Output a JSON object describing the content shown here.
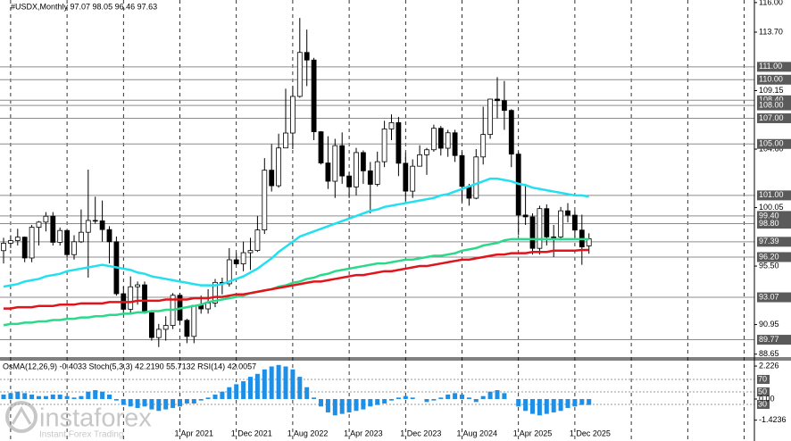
{
  "chart_data": [
    {
      "type": "candlestick",
      "title": "#USDX,Monthly  97.07 98.05 96.46 97.63",
      "open": [
        96.7,
        97.28,
        97.48,
        97.75,
        96.13,
        98.52,
        98.92,
        99.38,
        97.35,
        98.27,
        96.39,
        97.39,
        98.13,
        99.05,
        99.02,
        98.34,
        97.39,
        93.35,
        92.14,
        93.89,
        94.04,
        91.87,
        89.94,
        90.58,
        90.88,
        93.23,
        91.28,
        90.03,
        92.44,
        92.17,
        92.63,
        94.23,
        94.12,
        95.99,
        95.67,
        96.54,
        96.71,
        98.31,
        102.96,
        101.75,
        104.69,
        105.85,
        108.7,
        112.12,
        111.53,
        105.95,
        103.52,
        102.1,
        104.87,
        102.51,
        101.66,
        104.33,
        102.91,
        101.86,
        103.62,
        106.17,
        106.66,
        103.5,
        101.33,
        103.27,
        104.16,
        104.55,
        106.22,
        104.67,
        105.87,
        104.1,
        101.7,
        100.78,
        103.99,
        105.74,
        108.49,
        108.37,
        107.61,
        104.21,
        99.47,
        99.33,
        96.88,
        99.97,
        97.77,
        97.77,
        99.8,
        99.46,
        98.3,
        97.07
      ],
      "high": [
        97.7,
        97.9,
        98.4,
        97.8,
        98.7,
        99.0,
        99.7,
        99.7,
        98.5,
        98.3,
        97.9,
        99.9,
        103.0,
        100.9,
        100.6,
        98.6,
        97.8,
        93.9,
        94.7,
        94.3,
        94.3,
        91.9,
        91.0,
        91.6,
        93.4,
        93.4,
        91.4,
        92.4,
        93.2,
        93.7,
        94.5,
        94.6,
        96.9,
        96.5,
        97.4,
        97.7,
        99.4,
        103.9,
        105.0,
        105.8,
        109.3,
        109.5,
        114.8,
        113.9,
        111.7,
        106.0,
        105.6,
        105.4,
        105.9,
        102.8,
        104.7,
        104.5,
        103.6,
        104.4,
        106.8,
        107.3,
        107.1,
        104.3,
        103.8,
        104.9,
        104.7,
        106.5,
        106.4,
        106.1,
        106.1,
        104.4,
        101.9,
        104.6,
        107.9,
        108.5,
        110.2,
        109.9,
        107.7,
        104.4,
        101.9,
        99.6,
        100.2,
        100.3,
        98.7,
        100.1,
        100.4,
        99.8,
        99.5,
        98.05
      ],
      "low": [
        95.7,
        96.9,
        97.1,
        95.8,
        95.8,
        97.1,
        98.2,
        97.1,
        97.1,
        96.2,
        96.0,
        97.3,
        94.6,
        98.8,
        97.4,
        95.7,
        93.2,
        91.7,
        91.8,
        92.5,
        91.8,
        89.7,
        89.2,
        89.7,
        90.6,
        90.9,
        89.5,
        89.5,
        91.8,
        91.8,
        92.3,
        93.3,
        93.9,
        95.6,
        95.1,
        95.2,
        96.6,
        98.0,
        101.3,
        101.6,
        104.7,
        104.6,
        108.6,
        109.5,
        105.3,
        103.4,
        101.5,
        100.8,
        101.9,
        100.8,
        101.0,
        101.9,
        99.6,
        101.7,
        103.2,
        105.3,
        102.5,
        100.6,
        100.8,
        103.4,
        102.6,
        104.4,
        104.1,
        104.0,
        103.6,
        100.5,
        100.2,
        100.7,
        103.4,
        105.4,
        107.0,
        106.1,
        103.2,
        97.9,
        98.7,
        96.4,
        96.4,
        97.1,
        96.2,
        97.5,
        98.9,
        97.7,
        95.6,
        96.46
      ],
      "close": [
        97.28,
        97.48,
        97.75,
        96.13,
        98.52,
        98.92,
        99.38,
        97.35,
        98.27,
        96.39,
        97.39,
        98.13,
        99.05,
        99.02,
        98.34,
        97.39,
        93.35,
        92.14,
        93.89,
        94.04,
        91.87,
        89.94,
        90.58,
        90.88,
        93.23,
        91.28,
        90.03,
        92.44,
        92.17,
        92.63,
        94.23,
        94.12,
        95.99,
        95.67,
        96.54,
        96.71,
        98.31,
        102.96,
        101.75,
        104.69,
        105.85,
        108.7,
        112.12,
        111.53,
        105.95,
        103.52,
        102.1,
        104.87,
        102.51,
        101.66,
        104.33,
        102.91,
        101.86,
        103.62,
        106.17,
        106.66,
        103.5,
        101.33,
        103.27,
        104.16,
        104.55,
        106.22,
        104.67,
        105.87,
        104.1,
        101.7,
        100.78,
        103.99,
        105.74,
        108.49,
        108.37,
        107.61,
        104.21,
        99.47,
        99.33,
        96.88,
        99.97,
        97.77,
        97.77,
        99.8,
        99.46,
        98.3,
        96.99,
        97.63
      ],
      "lines": [
        {
          "color": "#22e0f0",
          "values": [
            93.9,
            94.0,
            94.1,
            94.3,
            94.4,
            94.5,
            94.7,
            94.8,
            94.9,
            95.1,
            95.2,
            95.3,
            95.4,
            95.5,
            95.6,
            95.5,
            95.4,
            95.3,
            95.2,
            95.0,
            94.9,
            94.7,
            94.6,
            94.5,
            94.4,
            94.3,
            94.2,
            94.1,
            94.0,
            94.0,
            94.0,
            94.1,
            94.3,
            94.5,
            94.7,
            95.0,
            95.3,
            95.7,
            96.1,
            96.6,
            97.0,
            97.4,
            97.8,
            98.0,
            98.2,
            98.4,
            98.6,
            98.8,
            99.0,
            99.2,
            99.4,
            99.6,
            99.8,
            99.9,
            100.1,
            100.2,
            100.3,
            100.4,
            100.5,
            100.6,
            100.7,
            100.8,
            101.0,
            101.1,
            101.3,
            101.5,
            101.7,
            101.9,
            102.1,
            102.3,
            102.3,
            102.2,
            102.1,
            101.9,
            101.8,
            101.6,
            101.5,
            101.4,
            101.3,
            101.2,
            101.1,
            101.0,
            101.0,
            100.9
          ]
        },
        {
          "color": "#2bd98a",
          "values": [
            90.9,
            91.0,
            91.0,
            91.1,
            91.1,
            91.2,
            91.2,
            91.3,
            91.3,
            91.4,
            91.4,
            91.5,
            91.5,
            91.6,
            91.6,
            91.7,
            91.7,
            91.8,
            91.8,
            91.9,
            91.9,
            92.0,
            92.0,
            92.1,
            92.1,
            92.2,
            92.3,
            92.4,
            92.5,
            92.7,
            92.8,
            92.9,
            93.0,
            93.1,
            93.2,
            93.4,
            93.5,
            93.6,
            93.7,
            93.9,
            94.0,
            94.2,
            94.3,
            94.5,
            94.6,
            94.8,
            94.9,
            95.1,
            95.2,
            95.3,
            95.4,
            95.5,
            95.6,
            95.7,
            95.7,
            95.8,
            95.9,
            96.0,
            96.0,
            96.1,
            96.2,
            96.3,
            96.3,
            96.4,
            96.5,
            96.7,
            96.8,
            96.9,
            97.1,
            97.2,
            97.3,
            97.5,
            97.6,
            97.6,
            97.6,
            97.6,
            97.6,
            97.6,
            97.6,
            97.6,
            97.6,
            97.6,
            97.6,
            97.6
          ]
        },
        {
          "color": "#e0141a",
          "values": [
            92.2,
            92.2,
            92.3,
            92.3,
            92.3,
            92.4,
            92.4,
            92.4,
            92.5,
            92.5,
            92.5,
            92.6,
            92.6,
            92.6,
            92.6,
            92.7,
            92.7,
            92.7,
            92.7,
            92.8,
            92.8,
            92.8,
            92.8,
            92.9,
            92.9,
            92.9,
            92.9,
            93.0,
            93.0,
            93.0,
            93.1,
            93.1,
            93.2,
            93.3,
            93.3,
            93.4,
            93.5,
            93.6,
            93.7,
            93.8,
            93.9,
            94.0,
            94.1,
            94.2,
            94.3,
            94.3,
            94.4,
            94.5,
            94.6,
            94.7,
            94.8,
            94.8,
            94.9,
            95.0,
            95.1,
            95.1,
            95.2,
            95.3,
            95.4,
            95.5,
            95.5,
            95.6,
            95.7,
            95.8,
            95.9,
            96.0,
            96.0,
            96.1,
            96.2,
            96.3,
            96.4,
            96.4,
            96.5,
            96.5,
            96.5,
            96.6,
            96.6,
            96.6,
            96.7,
            96.7,
            96.7,
            96.7,
            96.75,
            96.75
          ]
        }
      ],
      "x_labels": [
        "1 Apr 2021",
        "1 Dec 2021",
        "1 Aug 2022",
        "1 Apr 2023",
        "1 Dec 2023",
        "1 Aug 2024",
        "1 Apr 2025",
        "1 Dec 2025"
      ],
      "ylim": [
        88.42,
        116.2
      ],
      "yticks": [
        {
          "value": 116,
          "label": "116.00"
        },
        {
          "value": 113.7,
          "label": "113.70"
        },
        {
          "value": 109.15,
          "label": "109.15"
        },
        {
          "value": 104.6,
          "label": "104.60"
        },
        {
          "value": 100.05,
          "label": "100.05"
        },
        {
          "value": 95.5,
          "label": "95.50"
        },
        {
          "value": 90.95,
          "label": "90.95"
        },
        {
          "value": 88.65,
          "label": "88.65"
        }
      ],
      "levels": [
        {
          "value": 111,
          "label": "111.00"
        },
        {
          "value": 110,
          "label": "110.00"
        },
        {
          "value": 108.4,
          "label": "108.40"
        },
        {
          "value": 108,
          "label": "108.00"
        },
        {
          "value": 107,
          "label": "107.00"
        },
        {
          "value": 105,
          "label": "105.00"
        },
        {
          "value": 101,
          "label": "101.00"
        },
        {
          "value": 99.4,
          "label": "99.40"
        },
        {
          "value": 98.8,
          "label": "98.80"
        },
        {
          "value": 97.39,
          "label": "97.39"
        },
        {
          "value": 96.2,
          "label": "96.20"
        },
        {
          "value": 93.07,
          "label": "93.07"
        },
        {
          "value": 89.77,
          "label": "89.77"
        }
      ],
      "level_color": "#8c8c8c"
    },
    {
      "type": "bar",
      "title": "OsMA(12,26,9) -0.4033 Stoch(5,3,3) 42.2190 55.7132 RSI(14) 42.0057",
      "color": "#1e8fe6",
      "values": [
        0.3,
        0.4,
        0.5,
        0.4,
        0.3,
        0.2,
        0.2,
        0.3,
        0.3,
        0.2,
        0.1,
        0.2,
        0.5,
        0.6,
        0.5,
        0.3,
        -0.1,
        -0.4,
        -0.5,
        -0.6,
        -0.5,
        -0.7,
        -0.8,
        -0.7,
        -0.6,
        -0.5,
        -0.3,
        -0.3,
        -0.1,
        0.1,
        0.3,
        0.5,
        0.8,
        1.0,
        1.2,
        1.5,
        1.7,
        2.0,
        2.2,
        2.3,
        2.2,
        2.0,
        1.5,
        0.8,
        0.1,
        -0.5,
        -0.9,
        -1.1,
        -1.0,
        -0.9,
        -0.8,
        -0.7,
        -0.5,
        -0.4,
        -0.3,
        -0.1,
        0.1,
        0.2,
        0.1,
        0.0,
        -0.2,
        -0.1,
        0.1,
        0.3,
        0.4,
        0.3,
        0.1,
        -0.2,
        0.2,
        0.5,
        0.6,
        0.4,
        0.0,
        -0.5,
        -0.8,
        -1.0,
        -1.1,
        -1.0,
        -0.9,
        -0.8,
        -0.6,
        -0.5,
        -0.4,
        -0.4
      ],
      "ylim": [
        -2.83,
        2.59
      ],
      "yticks": [
        {
          "value": 2.226,
          "label": "2.226"
        },
        {
          "value": 0,
          "label": "0.00"
        },
        {
          "value": -1.4236,
          "label": "-1.4236"
        }
      ],
      "y2lim": [
        -28.6,
        100
      ],
      "y2ticks": [
        70,
        50,
        30
      ]
    }
  ],
  "watermark": {
    "brand": "instaforex",
    "tagline": "Instant Forex Trading"
  }
}
